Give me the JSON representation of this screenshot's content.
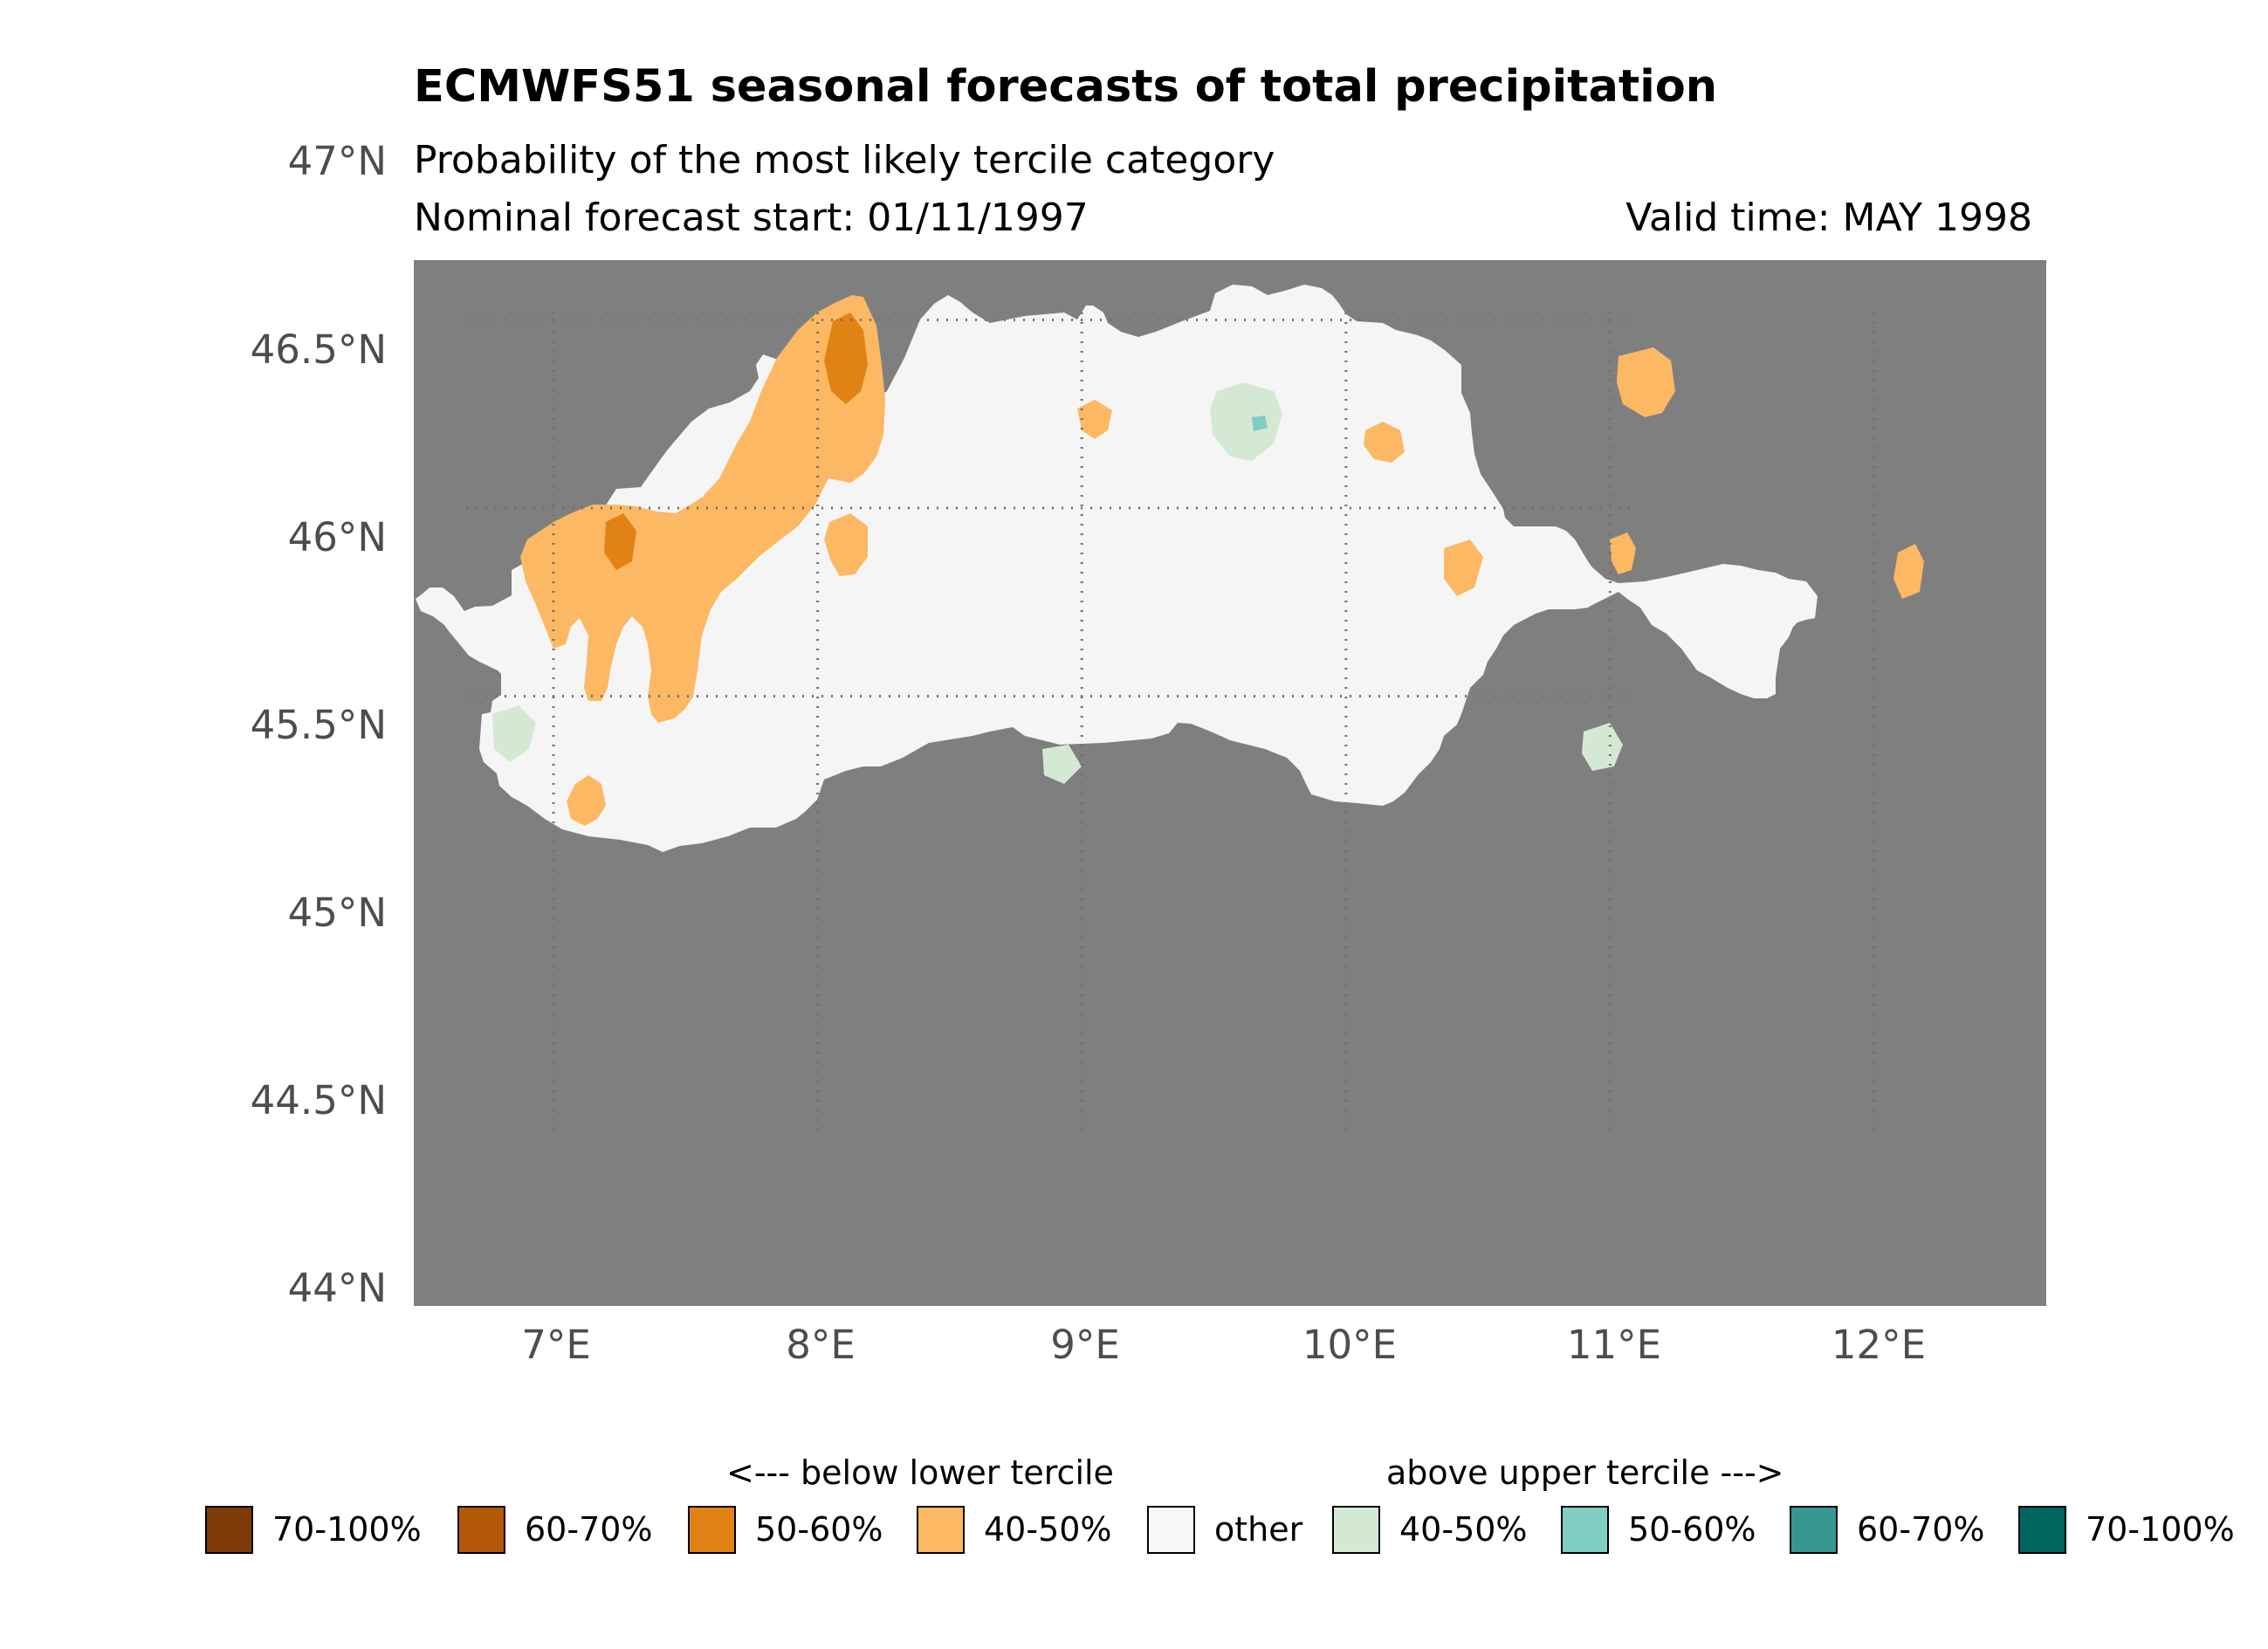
{
  "title": "ECMWFS51 seasonal forecasts of total precipitation",
  "subtitle": "Probability of the most likely tercile category",
  "forecast_start": "Nominal forecast start: 01/11/1997",
  "valid_time": "Valid time: MAY 1998",
  "map": {
    "background_color": "#7f7f7f",
    "land_other_color": "#f5f5f5",
    "lon_range": [
      6.5,
      12.7
    ],
    "lat_range": [
      44.0,
      47.0
    ],
    "lat_labels": [
      "47°N",
      "46.5°N",
      "46°N",
      "45.5°N",
      "45°N",
      "44.5°N",
      "44°N"
    ],
    "lon_labels": [
      "7°E",
      "8°E",
      "9°E",
      "10°E",
      "11°E",
      "12°E"
    ],
    "gridlines": "dotted"
  },
  "legend": {
    "below_header": "<--- below lower tercile",
    "above_header": "above upper tercile --->",
    "items": [
      {
        "label": "70-100%",
        "color": "#7f3b08"
      },
      {
        "label": "60-70%",
        "color": "#b35806"
      },
      {
        "label": "50-60%",
        "color": "#e08214"
      },
      {
        "label": "40-50%",
        "color": "#fdb863"
      },
      {
        "label": "other",
        "color": "#f7f7f7"
      },
      {
        "label": "40-50%",
        "color": "#d4e9d4"
      },
      {
        "label": "50-60%",
        "color": "#80cdc1"
      },
      {
        "label": "60-70%",
        "color": "#35978f"
      },
      {
        "label": "70-100%",
        "color": "#01665e"
      }
    ]
  }
}
